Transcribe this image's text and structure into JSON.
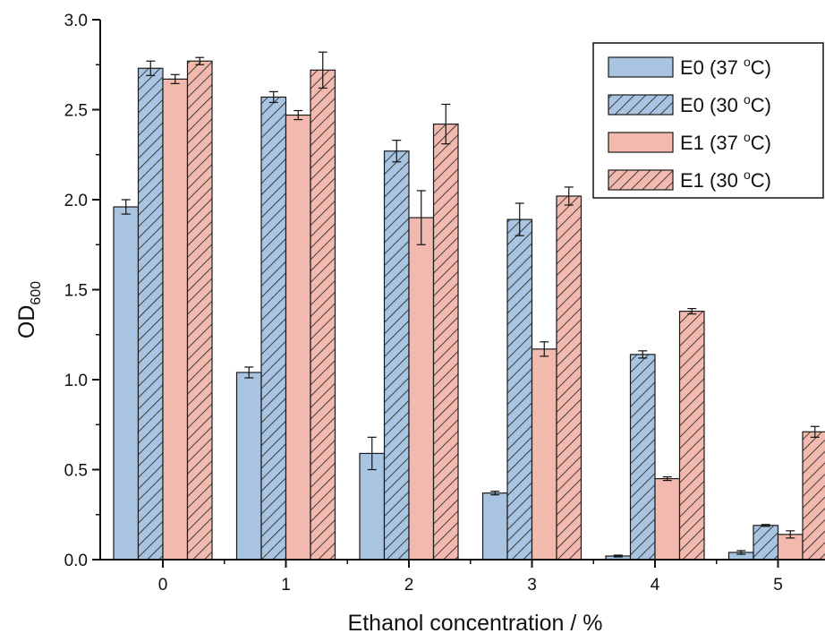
{
  "chart_data": {
    "type": "bar",
    "title": "",
    "xlabel": "Ethanol concentration / %",
    "ylabel": "OD",
    "ylabel_subscript": "600",
    "ylim": [
      0,
      3.0
    ],
    "yticks": [
      "0.0",
      "0.5",
      "1.0",
      "1.5",
      "2.0",
      "2.5",
      "3.0"
    ],
    "categories": [
      "0",
      "1",
      "2",
      "3",
      "4",
      "5"
    ],
    "legend_position": "top-right",
    "series": [
      {
        "name": "E0 (37 °C)",
        "name_base": "E0 (37 ",
        "name_sup": "o",
        "name_tail": "C)",
        "fill": "#a9c4e1",
        "hatch": false,
        "values": [
          1.96,
          1.04,
          0.59,
          0.37,
          0.02,
          0.04
        ],
        "errors": [
          0.04,
          0.03,
          0.09,
          0.01,
          0.005,
          0.01
        ]
      },
      {
        "name": "E0 (30 °C)",
        "name_base": "E0 (30 ",
        "name_sup": "o",
        "name_tail": "C)",
        "fill": "#a9c4e1",
        "hatch": true,
        "values": [
          2.73,
          2.57,
          2.27,
          1.89,
          1.14,
          0.19
        ],
        "errors": [
          0.04,
          0.03,
          0.06,
          0.09,
          0.02,
          0.005
        ]
      },
      {
        "name": "E1 (37 °C)",
        "name_base": "E1 (37 ",
        "name_sup": "o",
        "name_tail": "C)",
        "fill": "#f2b9ae",
        "hatch": false,
        "values": [
          2.67,
          2.47,
          1.9,
          1.17,
          0.45,
          0.14
        ],
        "errors": [
          0.025,
          0.025,
          0.15,
          0.04,
          0.01,
          0.02
        ]
      },
      {
        "name": "E1 (30 °C)",
        "name_base": "E1 (30 ",
        "name_sup": "o",
        "name_tail": "C)",
        "fill": "#f2b9ae",
        "hatch": true,
        "values": [
          2.77,
          2.72,
          2.42,
          2.02,
          1.38,
          0.71
        ],
        "errors": [
          0.02,
          0.1,
          0.11,
          0.05,
          0.015,
          0.03
        ]
      }
    ],
    "grid": false
  }
}
